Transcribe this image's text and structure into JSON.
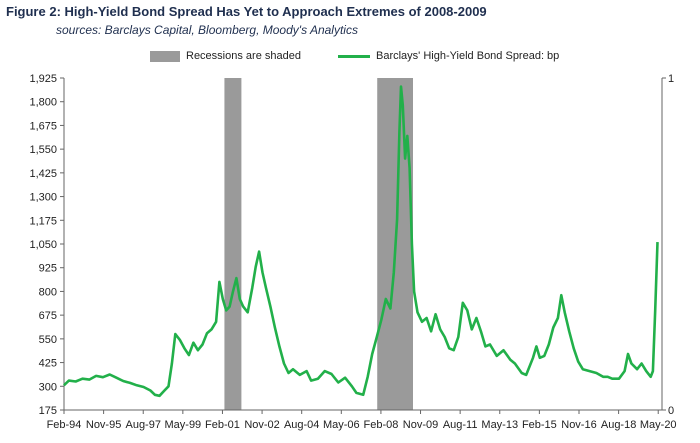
{
  "header": {
    "title": "Figure 2: High-Yield Bond Spread Has Yet to Approach Extremes of 2008-2009",
    "sources": "sources: Barclays Capital, Bloomberg, Moody's Analytics"
  },
  "chart_data": {
    "type": "line",
    "title": "Figure 2: High-Yield Bond Spread Has Yet to Approach Extremes of 2008-2009",
    "legend": [
      {
        "name": "Recessions are shaded",
        "kind": "recession",
        "color": "#9a9a9a"
      },
      {
        "name": "Barclays' High-Yield Bond Spread: bp",
        "kind": "line",
        "color": "#22b04a"
      }
    ],
    "y_left": {
      "min": 175,
      "max": 1925,
      "ticks": [
        175,
        300,
        425,
        550,
        675,
        800,
        925,
        1050,
        1175,
        1300,
        1425,
        1550,
        1675,
        1800,
        1925
      ],
      "tick_labels": [
        "175",
        "300",
        "425",
        "550",
        "675",
        "800",
        "925",
        "1,050",
        "1,175",
        "1,300",
        "1,425",
        "1,550",
        "1,675",
        "1,800",
        "1,925"
      ]
    },
    "y_right": {
      "min": 0,
      "max": 1,
      "tick_labels": [
        "0",
        "1"
      ]
    },
    "x": {
      "start": 1994.083,
      "end": 2020.5,
      "tick_positions": [
        1994.083,
        1995.833,
        1997.583,
        1999.333,
        2001.083,
        2002.833,
        2004.583,
        2006.333,
        2008.083,
        2009.833,
        2011.583,
        2013.333,
        2015.083,
        2016.833,
        2018.583,
        2020.333
      ],
      "tick_labels": [
        "Feb-94",
        "Nov-95",
        "Aug-97",
        "May-99",
        "Feb-01",
        "Nov-02",
        "Aug-04",
        "May-06",
        "Feb-08",
        "Nov-09",
        "Aug-11",
        "May-13",
        "Feb-15",
        "Nov-16",
        "Aug-18",
        "May-20"
      ]
    },
    "recessions": [
      [
        2001.17,
        2001.92
      ],
      [
        2007.92,
        2009.5
      ]
    ],
    "series": [
      {
        "name": "Barclays' High-Yield Bond Spread: bp",
        "points": [
          [
            1994.08,
            305
          ],
          [
            1994.3,
            330
          ],
          [
            1994.6,
            325
          ],
          [
            1994.9,
            340
          ],
          [
            1995.2,
            335
          ],
          [
            1995.5,
            355
          ],
          [
            1995.8,
            348
          ],
          [
            1996.1,
            362
          ],
          [
            1996.4,
            345
          ],
          [
            1996.7,
            328
          ],
          [
            1997.0,
            318
          ],
          [
            1997.3,
            305
          ],
          [
            1997.6,
            296
          ],
          [
            1997.9,
            278
          ],
          [
            1998.1,
            255
          ],
          [
            1998.3,
            250
          ],
          [
            1998.5,
            275
          ],
          [
            1998.7,
            300
          ],
          [
            1998.85,
            420
          ],
          [
            1999.0,
            575
          ],
          [
            1999.2,
            545
          ],
          [
            1999.4,
            500
          ],
          [
            1999.6,
            465
          ],
          [
            1999.8,
            530
          ],
          [
            2000.0,
            490
          ],
          [
            2000.2,
            520
          ],
          [
            2000.4,
            580
          ],
          [
            2000.6,
            600
          ],
          [
            2000.8,
            640
          ],
          [
            2000.95,
            850
          ],
          [
            2001.1,
            760
          ],
          [
            2001.25,
            700
          ],
          [
            2001.4,
            720
          ],
          [
            2001.55,
            800
          ],
          [
            2001.7,
            870
          ],
          [
            2001.85,
            760
          ],
          [
            2002.0,
            720
          ],
          [
            2002.2,
            690
          ],
          [
            2002.4,
            820
          ],
          [
            2002.55,
            930
          ],
          [
            2002.7,
            1010
          ],
          [
            2002.85,
            900
          ],
          [
            2003.0,
            820
          ],
          [
            2003.2,
            720
          ],
          [
            2003.4,
            610
          ],
          [
            2003.6,
            510
          ],
          [
            2003.8,
            420
          ],
          [
            2004.0,
            370
          ],
          [
            2004.2,
            390
          ],
          [
            2004.5,
            360
          ],
          [
            2004.8,
            380
          ],
          [
            2005.0,
            330
          ],
          [
            2005.3,
            340
          ],
          [
            2005.6,
            380
          ],
          [
            2005.9,
            365
          ],
          [
            2006.2,
            320
          ],
          [
            2006.5,
            345
          ],
          [
            2006.8,
            300
          ],
          [
            2007.0,
            265
          ],
          [
            2007.3,
            255
          ],
          [
            2007.5,
            350
          ],
          [
            2007.7,
            470
          ],
          [
            2007.9,
            560
          ],
          [
            2008.1,
            650
          ],
          [
            2008.3,
            760
          ],
          [
            2008.5,
            710
          ],
          [
            2008.65,
            900
          ],
          [
            2008.8,
            1180
          ],
          [
            2008.9,
            1640
          ],
          [
            2008.97,
            1880
          ],
          [
            2009.05,
            1780
          ],
          [
            2009.15,
            1500
          ],
          [
            2009.25,
            1620
          ],
          [
            2009.35,
            1450
          ],
          [
            2009.45,
            1050
          ],
          [
            2009.55,
            800
          ],
          [
            2009.7,
            690
          ],
          [
            2009.9,
            640
          ],
          [
            2010.1,
            660
          ],
          [
            2010.3,
            590
          ],
          [
            2010.5,
            680
          ],
          [
            2010.7,
            600
          ],
          [
            2010.9,
            560
          ],
          [
            2011.1,
            500
          ],
          [
            2011.3,
            490
          ],
          [
            2011.5,
            560
          ],
          [
            2011.7,
            740
          ],
          [
            2011.9,
            700
          ],
          [
            2012.1,
            600
          ],
          [
            2012.3,
            660
          ],
          [
            2012.5,
            590
          ],
          [
            2012.7,
            510
          ],
          [
            2012.9,
            520
          ],
          [
            2013.2,
            460
          ],
          [
            2013.5,
            490
          ],
          [
            2013.8,
            440
          ],
          [
            2014.0,
            420
          ],
          [
            2014.3,
            370
          ],
          [
            2014.5,
            360
          ],
          [
            2014.8,
            450
          ],
          [
            2014.95,
            510
          ],
          [
            2015.1,
            450
          ],
          [
            2015.3,
            460
          ],
          [
            2015.5,
            520
          ],
          [
            2015.7,
            610
          ],
          [
            2015.9,
            660
          ],
          [
            2016.05,
            780
          ],
          [
            2016.2,
            690
          ],
          [
            2016.4,
            590
          ],
          [
            2016.6,
            500
          ],
          [
            2016.8,
            430
          ],
          [
            2017.0,
            390
          ],
          [
            2017.3,
            380
          ],
          [
            2017.6,
            370
          ],
          [
            2017.9,
            350
          ],
          [
            2018.1,
            350
          ],
          [
            2018.3,
            340
          ],
          [
            2018.6,
            340
          ],
          [
            2018.85,
            380
          ],
          [
            2019.0,
            470
          ],
          [
            2019.15,
            420
          ],
          [
            2019.4,
            390
          ],
          [
            2019.6,
            420
          ],
          [
            2019.8,
            380
          ],
          [
            2020.0,
            350
          ],
          [
            2020.1,
            380
          ],
          [
            2020.2,
            700
          ],
          [
            2020.3,
            1060
          ]
        ]
      }
    ]
  }
}
